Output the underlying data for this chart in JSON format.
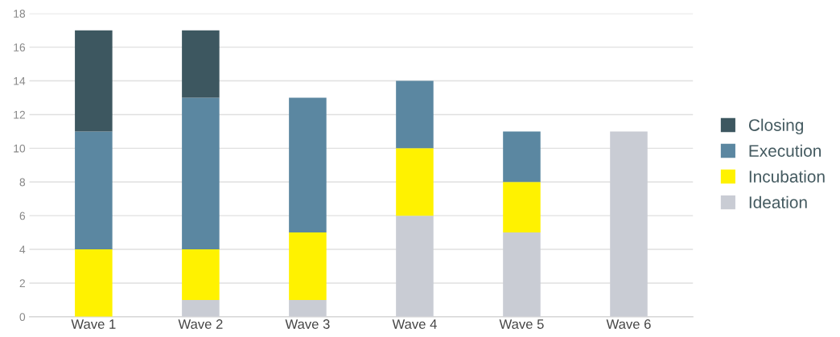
{
  "chart_data": {
    "type": "bar",
    "stacked": true,
    "categories": [
      "Wave 1",
      "Wave 2",
      "Wave 3",
      "Wave 4",
      "Wave 5",
      "Wave 6"
    ],
    "series": [
      {
        "name": "Ideation",
        "color": "#c9ccd4",
        "values": [
          null,
          1,
          1,
          6,
          5,
          11
        ]
      },
      {
        "name": "Incubation",
        "color": "#fff200",
        "values": [
          4,
          3,
          4,
          4,
          3,
          null
        ]
      },
      {
        "name": "Execution",
        "color": "#5b87a1",
        "values": [
          7,
          9,
          8,
          4,
          3,
          null
        ]
      },
      {
        "name": "Closing",
        "color": "#3d5760",
        "values": [
          6,
          4,
          null,
          null,
          null,
          null
        ]
      }
    ],
    "ylim": [
      0,
      18
    ],
    "yticks": [
      0,
      2,
      4,
      6,
      8,
      10,
      12,
      14,
      16,
      18
    ],
    "grid": "y",
    "legend": "right"
  }
}
